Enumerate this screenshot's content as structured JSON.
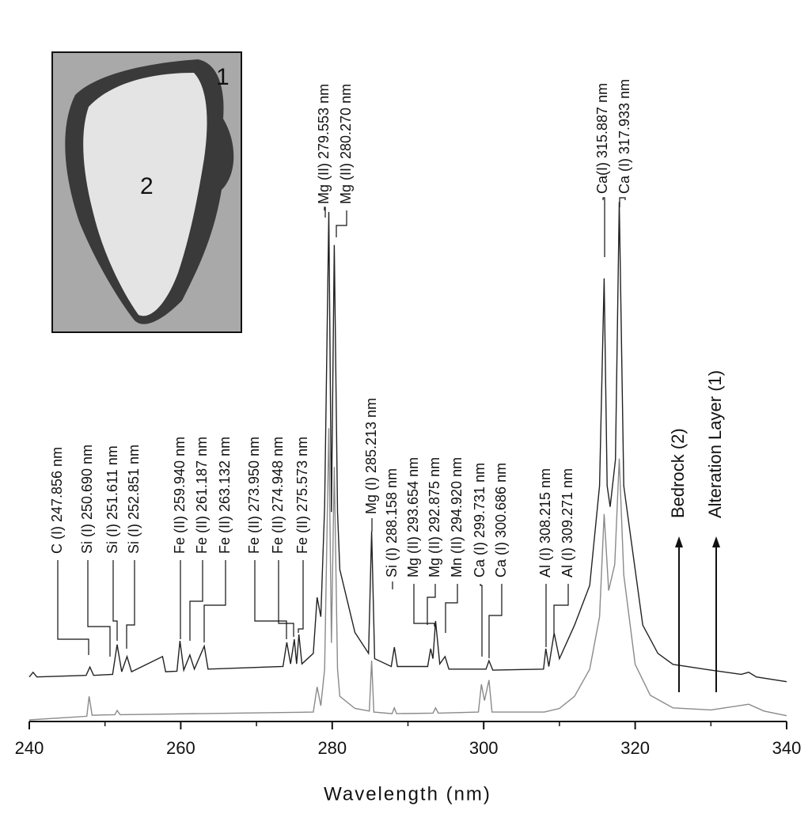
{
  "chart_data": {
    "type": "line",
    "xlabel": "Wavelength (nm)",
    "xlim": [
      240,
      340
    ],
    "xticks": [
      240,
      260,
      280,
      300,
      320,
      340
    ],
    "xminorticks": [
      250,
      270,
      290,
      310,
      330
    ],
    "ylim": [
      0,
      100
    ],
    "inset_labels": [
      "1",
      "2"
    ],
    "series": [
      {
        "name": "Alteration Layer (1)",
        "color": "#222222",
        "x": [
          240,
          240.5,
          241,
          247.5,
          248,
          248.5,
          251,
          251.6,
          252.2,
          252.9,
          253.5,
          257.6,
          258,
          259.5,
          259.9,
          260.4,
          261.2,
          261.8,
          263.1,
          263.6,
          273.5,
          274,
          274.5,
          275,
          275.3,
          275.6,
          276,
          277.5,
          278,
          278.5,
          279,
          279.55,
          279.9,
          280.27,
          280.7,
          281,
          283,
          284.8,
          285.2,
          285.6,
          287.8,
          288.2,
          288.6,
          292.6,
          293,
          293.3,
          293.65,
          294.2,
          294.9,
          295.4,
          300.3,
          300.7,
          301.2,
          307.9,
          308.2,
          308.6,
          309.3,
          310,
          312,
          314,
          315.3,
          315.9,
          316.3,
          316.7,
          317.4,
          317.9,
          318.5,
          319,
          321,
          323,
          325,
          330,
          334,
          335,
          336,
          340
        ],
        "values": [
          8.5,
          9.4,
          8.5,
          8.8,
          10.4,
          8.8,
          9,
          14.7,
          9.5,
          12.4,
          9.5,
          12.4,
          9.5,
          9.6,
          15.4,
          9.8,
          12.7,
          10,
          14.4,
          10,
          10.5,
          15.1,
          11,
          15.7,
          11,
          16.6,
          11,
          13,
          23.7,
          20,
          41,
          97.3,
          40,
          91,
          40,
          29,
          17,
          13,
          36.3,
          12,
          10.5,
          14.2,
          10.5,
          10.5,
          13.9,
          12,
          19.2,
          11,
          12.4,
          10,
          10,
          11.6,
          9.8,
          10,
          13.9,
          10.5,
          16.9,
          12,
          18.4,
          26,
          45,
          84.6,
          45,
          41,
          50,
          99.2,
          45,
          39.6,
          18.4,
          13,
          10.9,
          9.8,
          9,
          9.4,
          8.5,
          7.6
        ]
      },
      {
        "name": "Bedrock (2)",
        "color": "#8a8a8a",
        "x": [
          240,
          247.6,
          247.9,
          248.3,
          251.3,
          251.6,
          252,
          277.5,
          278,
          278.5,
          279,
          279.55,
          279.9,
          280.27,
          280.7,
          281,
          283,
          284.9,
          285.2,
          285.5,
          287.9,
          288.2,
          288.5,
          293.3,
          293.65,
          294,
          299.3,
          299.7,
          300.1,
          300.7,
          301.1,
          308,
          310,
          312,
          314,
          315.3,
          315.9,
          316.5,
          317.3,
          317.9,
          318.5,
          320,
          322,
          325,
          330,
          335,
          337,
          340
        ],
        "values": [
          0.3,
          1,
          4.8,
          1.2,
          1.3,
          2.1,
          1.3,
          1.8,
          6.6,
          3,
          10,
          56,
          15,
          48.6,
          10,
          4.8,
          2.5,
          2,
          11.6,
          1.8,
          1.5,
          2.6,
          1.5,
          1.6,
          2.6,
          1.6,
          1.8,
          7.1,
          4,
          7.9,
          1.8,
          1.8,
          2.5,
          4.8,
          10,
          20,
          39.6,
          25,
          30,
          50.2,
          28,
          10.9,
          5,
          2.6,
          2.2,
          3.3,
          2,
          1.1
        ]
      }
    ],
    "annotations": [
      "C (I) 247.856 nm",
      "Si (I) 250.690 nm",
      "Si (I) 251.611 nm",
      "Si (I) 252.851 nm",
      "Fe (II) 259.940 nm",
      "Fe (II) 261.187 nm",
      "Fe (II) 263.132 nm",
      "Fe (II) 273.950 nm",
      "Fe (II) 274.948 nm",
      "Fe (II) 275.573 nm",
      "Mg (II) 279.553 nm",
      "Mg (II) 280.270 nm",
      "Mg (I) 285.213 nm",
      "Si (I) 288.158 nm",
      "Mg (II) 293.654 nm",
      "Mg (II) 292.875 nm",
      "Mn (II) 294.920 nm",
      "Ca (I) 299.731 nm",
      "Ca (I) 300.686 nm",
      "Al (I) 308.215 nm",
      "Al (I) 309.271 nm",
      "Ca(I) 315.887 nm",
      "Ca (I) 317.933 nm"
    ]
  }
}
